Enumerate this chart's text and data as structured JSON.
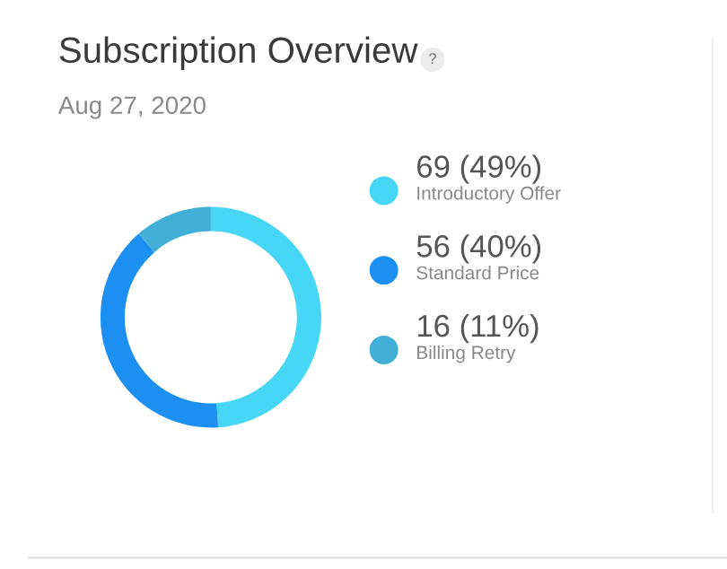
{
  "chart_data": {
    "type": "donut",
    "title": "Subscription Overview",
    "subtitle": "Aug 27, 2020",
    "annotations": [
      "?"
    ],
    "categories": [
      "Introductory Offer",
      "Standard Price",
      "Billing Retry"
    ],
    "values": [
      69,
      56,
      16
    ],
    "value_labels": [
      "69 (49%)",
      "56 (40%)",
      "16 (11%)"
    ],
    "colors": [
      "#47d6f5",
      "#1c8ff2",
      "#42b0d6"
    ],
    "legend": "right"
  }
}
